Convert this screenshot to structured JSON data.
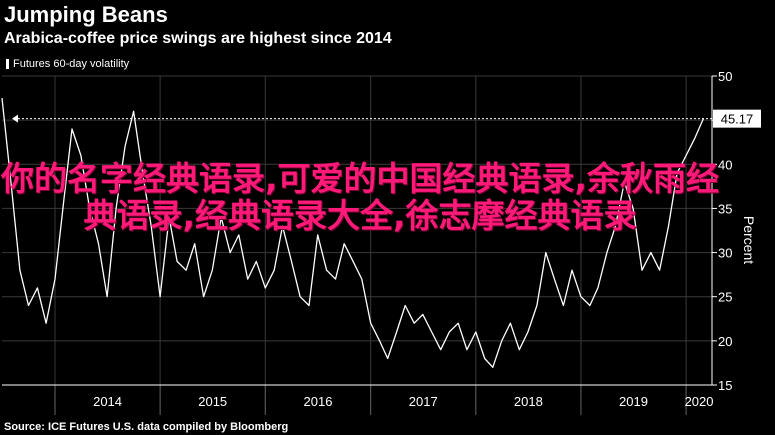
{
  "chart_data": {
    "type": "line",
    "title": "Jumping Beans",
    "subtitle": "Arabica-coffee price swings are highest since 2014",
    "series": [
      {
        "name": "Futures 60-day volatility",
        "color": "#ffffff",
        "points": [
          [
            "2013-07-01",
            47.5
          ],
          [
            "2013-08-01",
            38
          ],
          [
            "2013-09-01",
            28
          ],
          [
            "2013-10-01",
            24
          ],
          [
            "2013-11-01",
            26
          ],
          [
            "2013-12-01",
            22
          ],
          [
            "2014-01-01",
            27
          ],
          [
            "2014-02-01",
            36
          ],
          [
            "2014-03-01",
            44
          ],
          [
            "2014-04-01",
            41
          ],
          [
            "2014-05-01",
            35
          ],
          [
            "2014-06-01",
            31
          ],
          [
            "2014-07-01",
            25
          ],
          [
            "2014-08-01",
            35
          ],
          [
            "2014-09-01",
            42
          ],
          [
            "2014-10-01",
            46
          ],
          [
            "2014-11-01",
            39
          ],
          [
            "2014-12-01",
            33
          ],
          [
            "2015-01-01",
            25
          ],
          [
            "2015-02-01",
            34
          ],
          [
            "2015-03-01",
            29
          ],
          [
            "2015-04-01",
            28
          ],
          [
            "2015-05-01",
            31
          ],
          [
            "2015-06-01",
            25
          ],
          [
            "2015-07-01",
            28
          ],
          [
            "2015-08-01",
            34
          ],
          [
            "2015-09-01",
            30
          ],
          [
            "2015-10-01",
            32
          ],
          [
            "2015-11-01",
            27
          ],
          [
            "2015-12-01",
            29
          ],
          [
            "2016-01-01",
            26
          ],
          [
            "2016-02-01",
            28
          ],
          [
            "2016-03-01",
            33
          ],
          [
            "2016-04-01",
            29
          ],
          [
            "2016-05-01",
            25
          ],
          [
            "2016-06-01",
            24
          ],
          [
            "2016-07-01",
            32
          ],
          [
            "2016-08-01",
            28
          ],
          [
            "2016-09-01",
            27
          ],
          [
            "2016-10-01",
            31
          ],
          [
            "2016-11-01",
            29
          ],
          [
            "2016-12-01",
            27
          ],
          [
            "2017-01-01",
            22
          ],
          [
            "2017-02-01",
            20
          ],
          [
            "2017-03-01",
            18
          ],
          [
            "2017-04-01",
            21
          ],
          [
            "2017-05-01",
            24
          ],
          [
            "2017-06-01",
            22
          ],
          [
            "2017-07-01",
            23
          ],
          [
            "2017-08-01",
            21
          ],
          [
            "2017-09-01",
            19
          ],
          [
            "2017-10-01",
            21
          ],
          [
            "2017-11-01",
            22
          ],
          [
            "2017-12-01",
            19
          ],
          [
            "2018-01-01",
            21
          ],
          [
            "2018-02-01",
            18
          ],
          [
            "2018-03-01",
            17
          ],
          [
            "2018-04-01",
            20
          ],
          [
            "2018-05-01",
            22
          ],
          [
            "2018-06-01",
            19
          ],
          [
            "2018-07-01",
            21
          ],
          [
            "2018-08-01",
            24
          ],
          [
            "2018-09-01",
            30
          ],
          [
            "2018-10-01",
            27
          ],
          [
            "2018-11-01",
            24
          ],
          [
            "2018-12-01",
            28
          ],
          [
            "2019-01-01",
            25
          ],
          [
            "2019-02-01",
            24
          ],
          [
            "2019-03-01",
            26
          ],
          [
            "2019-04-01",
            30
          ],
          [
            "2019-05-01",
            33
          ],
          [
            "2019-06-01",
            38
          ],
          [
            "2019-07-01",
            35
          ],
          [
            "2019-08-01",
            28
          ],
          [
            "2019-09-01",
            30
          ],
          [
            "2019-10-01",
            28
          ],
          [
            "2019-11-01",
            33
          ],
          [
            "2019-12-01",
            39
          ],
          [
            "2020-01-01",
            41
          ],
          [
            "2020-02-01",
            43
          ],
          [
            "2020-03-01",
            45.17
          ]
        ]
      }
    ],
    "last_value_label": "45.17",
    "reference_line": {
      "value": 45.17,
      "style": "dotted"
    },
    "xlabel": "",
    "ylabel": "Percent",
    "ylim": [
      15,
      50
    ],
    "yticks": [
      15,
      20,
      25,
      30,
      35,
      40,
      45,
      50
    ],
    "xlim": [
      "2013-07-01",
      "2020-03-31"
    ],
    "x_tick_labels": [
      "2014",
      "2015",
      "2016",
      "2017",
      "2018",
      "2019",
      "2020"
    ],
    "y_axis_position": "right",
    "legend_position": "top-left",
    "grid": true,
    "source": "Source: ICE Futures U.S. data compiled by Bloomberg"
  },
  "overlay_text": "你的名字经典语录,可爱的中国经典语录,余秋雨经典语录,经典语录大全,徐志摩经典语录"
}
